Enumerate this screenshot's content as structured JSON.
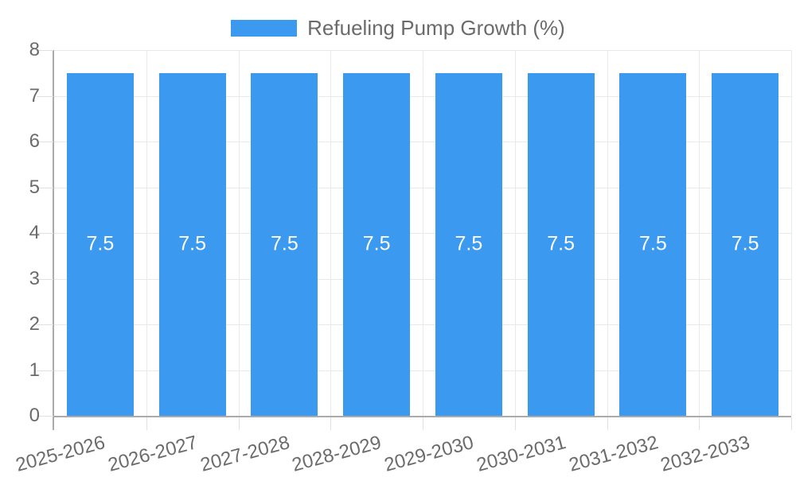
{
  "chart_data": {
    "type": "bar",
    "title": "Refueling Pump Growth (%)",
    "legend": {
      "label": "Refueling Pump Growth (%)",
      "position": "top"
    },
    "categories": [
      "2025-2026",
      "2026-2027",
      "2027-2028",
      "2028-2029",
      "2029-2030",
      "2030-2031",
      "2031-2032",
      "2032-2033"
    ],
    "series": [
      {
        "name": "Refueling Pump Growth (%)",
        "values": [
          7.5,
          7.5,
          7.5,
          7.5,
          7.5,
          7.5,
          7.5,
          7.5
        ]
      }
    ],
    "bar_value_labels": [
      "7.5",
      "7.5",
      "7.5",
      "7.5",
      "7.5",
      "7.5",
      "7.5",
      "7.5"
    ],
    "xlabel": "",
    "ylabel": "",
    "ylim": [
      0,
      8
    ],
    "yticks": [
      0,
      1,
      2,
      3,
      4,
      5,
      6,
      7,
      8
    ],
    "grid": true,
    "x_label_rotation_deg": -15,
    "colors": {
      "bar": "#3B99F0",
      "axis_line": "#ABABAB",
      "gridline": "#E9E9E9",
      "tick": "#E0E0E0",
      "text": "#6B6B6B",
      "value_label": "#FFFFFF",
      "background": "#FFFFFF"
    }
  }
}
